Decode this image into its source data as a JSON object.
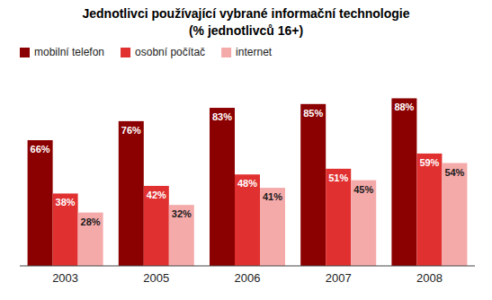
{
  "chart_data": {
    "type": "bar",
    "title": "Jednotlivci používající vybrané informační technologie",
    "subtitle": "(% jednotlivců 16+)",
    "categories": [
      "2003",
      "2005",
      "2006",
      "2007",
      "2008"
    ],
    "series": [
      {
        "name": "mobilní telefon",
        "color": "#8B0000",
        "values": [
          66,
          76,
          83,
          85,
          88
        ],
        "value_labels": [
          "66%",
          "76%",
          "83%",
          "85%",
          "88%"
        ]
      },
      {
        "name": "osobní počítač",
        "color": "#E03030",
        "values": [
          38,
          42,
          48,
          51,
          59
        ],
        "value_labels": [
          "38%",
          "42%",
          "48%",
          "51%",
          "59%"
        ]
      },
      {
        "name": "internet",
        "color": "#F5AAAA",
        "values": [
          28,
          32,
          41,
          45,
          54
        ],
        "value_labels": [
          "28%",
          "32%",
          "41%",
          "45%",
          "54%"
        ]
      }
    ],
    "ylim": [
      0,
      100
    ],
    "grid": false,
    "legend": "upper left",
    "data_labels": true,
    "tick_labels": "x"
  }
}
